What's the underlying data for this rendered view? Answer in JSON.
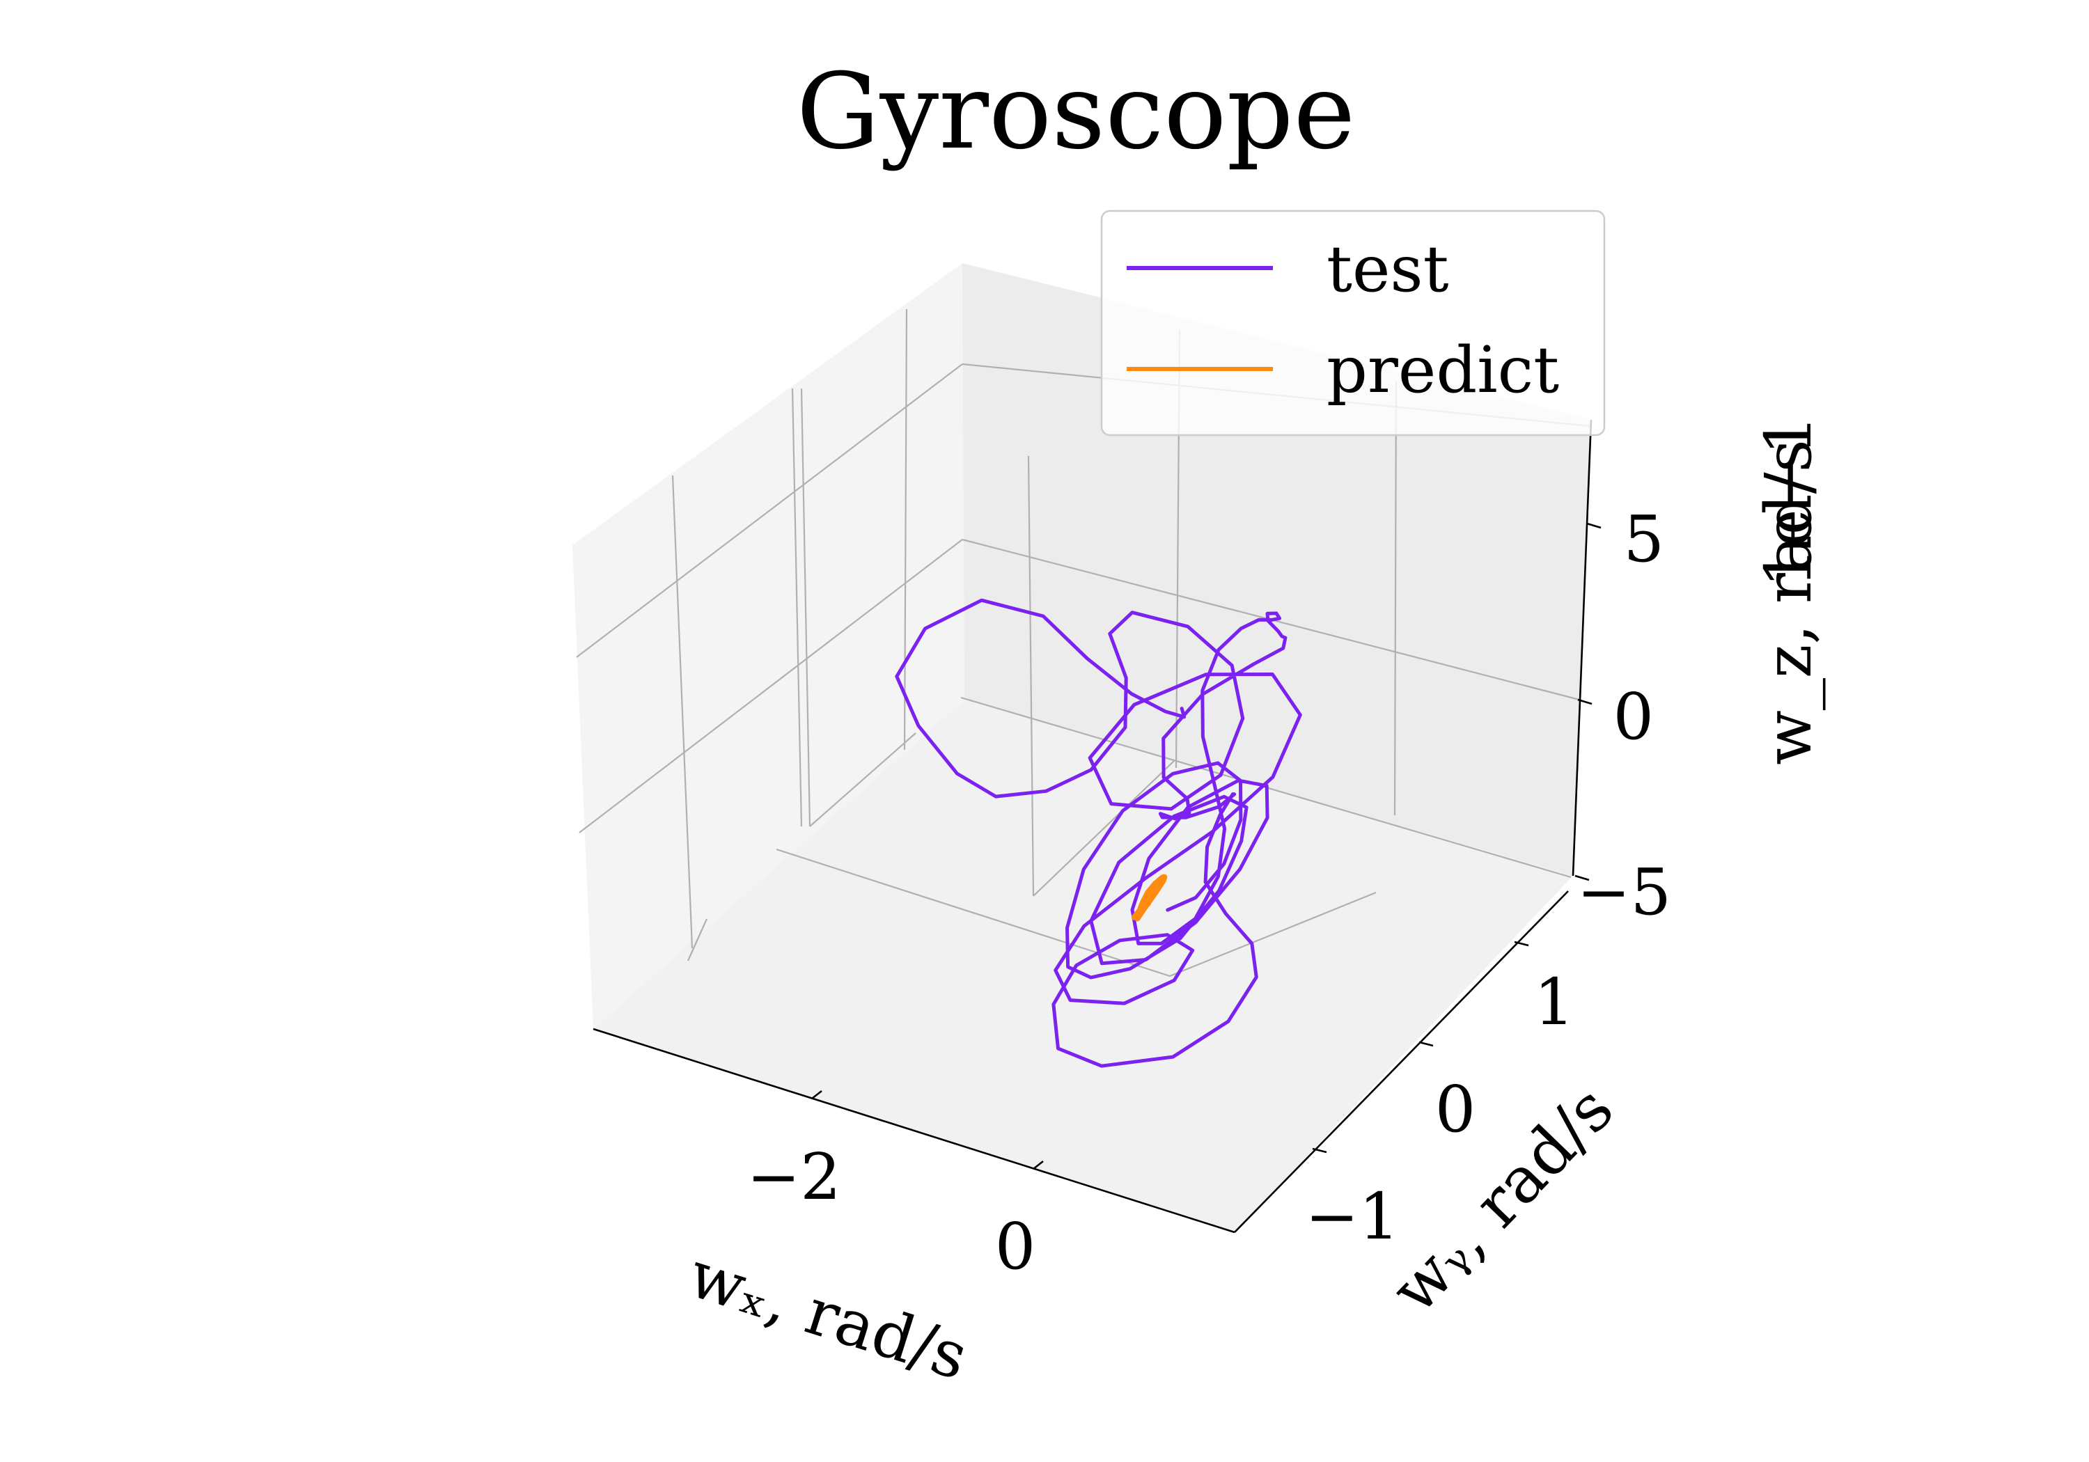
{
  "chart_data": {
    "type": "line",
    "projection": "3d",
    "title": "Gyroscope",
    "xlabel": "wₓ, rad/s",
    "ylabel": "wᵧ, rad/s",
    "zlabel": "w_z, rad/s",
    "z_offset_text": "1e−1",
    "xlim": [
      -3.5,
      1.2
    ],
    "ylim": [
      -1.6,
      1.6
    ],
    "zlim": [
      -5,
      7
    ],
    "x_ticks": [
      -2,
      0
    ],
    "x_tick_labels": [
      "−2",
      "0"
    ],
    "y_ticks": [
      -1,
      0,
      1
    ],
    "y_tick_labels": [
      "−1",
      "0",
      "1"
    ],
    "z_ticks": [
      -5,
      0,
      5
    ],
    "z_tick_labels": [
      "−5",
      "0",
      "5"
    ],
    "grid": true,
    "legend_position": "top-right",
    "colors": {
      "test": "#7b22f0",
      "predict": "#ff8a10"
    },
    "series": [
      {
        "name": "test",
        "points": [
          [
            -0.35,
            0.35,
            1.6
          ],
          [
            -0.55,
            0.6,
            0.4
          ],
          [
            -0.9,
            0.8,
            -0.4
          ],
          [
            -1.3,
            0.9,
            -0.6
          ],
          [
            -1.8,
            1.0,
            -0.4
          ],
          [
            -2.3,
            1.1,
            0.0
          ],
          [
            -2.9,
            1.15,
            -0.3
          ],
          [
            -3.3,
            1.05,
            -1.2
          ],
          [
            -3.35,
            0.85,
            -2.0
          ],
          [
            -3.0,
            0.7,
            -2.6
          ],
          [
            -2.5,
            0.55,
            -3.0
          ],
          [
            -2.1,
            0.5,
            -3.1
          ],
          [
            -1.7,
            0.55,
            -2.7
          ],
          [
            -1.4,
            0.65,
            -2.1
          ],
          [
            -1.25,
            0.8,
            -1.2
          ],
          [
            -1.4,
            0.95,
            -0.4
          ],
          [
            -1.7,
            1.1,
            0.1
          ],
          [
            -1.6,
            1.2,
            0.5
          ],
          [
            -1.1,
            1.2,
            0.6
          ],
          [
            -0.6,
            1.1,
            0.3
          ],
          [
            -0.3,
            0.9,
            -0.3
          ],
          [
            -0.2,
            0.6,
            -0.9
          ],
          [
            -0.4,
            0.35,
            -1.3
          ],
          [
            -0.8,
            0.2,
            -1.1
          ],
          [
            -1.1,
            0.3,
            -0.4
          ],
          [
            -1.0,
            0.6,
            0.3
          ],
          [
            -0.6,
            0.85,
            0.8
          ],
          [
            -0.1,
            0.95,
            1.0
          ],
          [
            0.3,
            0.8,
            0.7
          ],
          [
            0.4,
            0.45,
            0.1
          ],
          [
            0.2,
            0.1,
            -0.6
          ],
          [
            -0.1,
            -0.2,
            -1.3
          ],
          [
            -0.4,
            -0.45,
            -2.2
          ],
          [
            -0.5,
            -0.6,
            -3.1
          ],
          [
            -0.4,
            -0.55,
            -4.0
          ],
          [
            -0.1,
            -0.35,
            -4.4
          ],
          [
            0.2,
            -0.2,
            -3.9
          ],
          [
            0.35,
            -0.2,
            -2.9
          ],
          [
            0.3,
            -0.4,
            -1.9
          ],
          [
            0.15,
            -0.7,
            -1.3
          ],
          [
            0.0,
            -0.95,
            -1.4
          ],
          [
            -0.05,
            -1.1,
            -2.1
          ],
          [
            0.1,
            -1.2,
            -2.9
          ],
          [
            0.45,
            -1.15,
            -3.2
          ],
          [
            0.9,
            -0.95,
            -3.1
          ],
          [
            1.15,
            -0.7,
            -2.6
          ],
          [
            1.2,
            -0.5,
            -1.9
          ],
          [
            1.1,
            -0.45,
            -1.2
          ],
          [
            0.9,
            -0.5,
            -0.4
          ],
          [
            0.75,
            -0.55,
            0.5
          ],
          [
            0.75,
            -0.55,
            1.5
          ],
          [
            0.85,
            -0.55,
            2.5
          ],
          [
            1.0,
            -0.6,
            3.4
          ],
          [
            1.15,
            -0.75,
            4.0
          ],
          [
            1.2,
            -0.95,
            4.3
          ],
          [
            1.0,
            -1.05,
            4.1
          ],
          [
            0.7,
            -0.95,
            3.5
          ],
          [
            0.5,
            -0.75,
            2.8
          ],
          [
            0.45,
            -0.55,
            2.0
          ],
          [
            0.35,
            -0.3,
            1.3
          ],
          [
            0.1,
            -0.05,
            0.7
          ],
          [
            -0.3,
            0.15,
            0.3
          ],
          [
            -0.5,
            0.35,
            0.6
          ],
          [
            -0.35,
            0.55,
            1.4
          ],
          [
            0.0,
            0.65,
            2.3
          ],
          [
            0.3,
            0.6,
            3.2
          ],
          [
            0.45,
            0.45,
            4.1
          ],
          [
            0.6,
            0.25,
            4.9
          ],
          [
            0.7,
            0.1,
            5.6
          ],
          [
            0.65,
            0.05,
            6.0
          ],
          [
            0.55,
            0.15,
            5.8
          ],
          [
            0.45,
            0.35,
            5.1
          ],
          [
            0.3,
            0.55,
            4.2
          ],
          [
            0.05,
            0.75,
            3.3
          ],
          [
            -0.2,
            0.9,
            2.6
          ],
          [
            -0.4,
            0.95,
            2.0
          ],
          [
            -0.5,
            0.85,
            1.6
          ],
          [
            -0.4,
            0.6,
            1.3
          ],
          [
            -0.15,
            0.35,
            1.0
          ],
          [
            0.15,
            0.15,
            0.6
          ],
          [
            0.4,
            0.0,
            0.0
          ],
          [
            0.5,
            -0.15,
            -0.8
          ],
          [
            0.45,
            -0.3,
            -1.6
          ],
          [
            0.25,
            -0.4,
            -2.2
          ],
          [
            0.0,
            -0.35,
            -2.6
          ],
          [
            -0.25,
            -0.15,
            -2.5
          ],
          [
            -0.35,
            0.1,
            -1.9
          ],
          [
            -0.25,
            0.35,
            -1.1
          ],
          [
            0.05,
            0.5,
            -0.5
          ],
          [
            0.35,
            0.45,
            -0.2
          ],
          [
            0.55,
            0.25,
            -0.3
          ],
          [
            0.6,
            -0.05,
            -0.8
          ],
          [
            0.5,
            -0.35,
            -1.5
          ],
          [
            0.3,
            -0.6,
            -2.0
          ],
          [
            0.0,
            -0.7,
            -2.1
          ],
          [
            -0.25,
            -0.55,
            -1.6
          ],
          [
            -0.3,
            -0.25,
            -0.9
          ],
          [
            -0.1,
            0.05,
            -0.3
          ],
          [
            0.2,
            0.2,
            0.1
          ],
          [
            0.45,
            0.15,
            0.2
          ],
          [
            0.6,
            -0.05,
            0.0
          ],
          [
            0.65,
            -0.3,
            -0.6
          ],
          [
            0.55,
            -0.55,
            -1.3
          ],
          [
            0.3,
            -0.75,
            -1.8
          ],
          [
            0.0,
            -0.8,
            -2.2
          ],
          [
            -0.3,
            -0.7,
            -2.5
          ],
          [
            -0.55,
            -0.45,
            -2.4
          ],
          [
            -0.7,
            -0.15,
            -1.8
          ],
          [
            -0.65,
            0.15,
            -1.0
          ],
          [
            -0.4,
            0.35,
            -0.3
          ],
          [
            -0.05,
            0.4,
            0.2
          ],
          [
            0.25,
            0.3,
            0.3
          ],
          [
            0.45,
            0.1,
            0.0
          ],
          [
            0.5,
            -0.1,
            -0.6
          ],
          [
            0.4,
            -0.25,
            -1.2
          ],
          [
            0.2,
            -0.3,
            -1.6
          ]
        ]
      },
      {
        "name": "predict",
        "points": [
          [
            -0.02,
            -0.35,
            -1.9
          ],
          [
            0.12,
            -0.45,
            -1.2
          ],
          [
            0.28,
            -0.55,
            -0.4
          ],
          [
            0.4,
            -0.62,
            0.3
          ],
          [
            0.48,
            -0.66,
            0.7
          ],
          [
            0.38,
            -0.56,
            0.2
          ],
          [
            0.22,
            -0.44,
            -0.6
          ],
          [
            0.06,
            -0.34,
            -1.4
          ],
          [
            -0.06,
            -0.28,
            -1.9
          ],
          [
            0.05,
            -0.38,
            -1.3
          ],
          [
            0.2,
            -0.5,
            -0.5
          ],
          [
            0.35,
            -0.6,
            0.2
          ],
          [
            0.45,
            -0.64,
            0.6
          ],
          [
            0.32,
            -0.52,
            0.0
          ],
          [
            0.16,
            -0.4,
            -0.8
          ],
          [
            0.02,
            -0.3,
            -1.6
          ],
          [
            0.0,
            -0.4,
            -1.7
          ],
          [
            0.15,
            -0.5,
            -1.0
          ],
          [
            0.3,
            -0.58,
            -0.2
          ],
          [
            0.44,
            -0.63,
            0.5
          ]
        ]
      }
    ]
  }
}
